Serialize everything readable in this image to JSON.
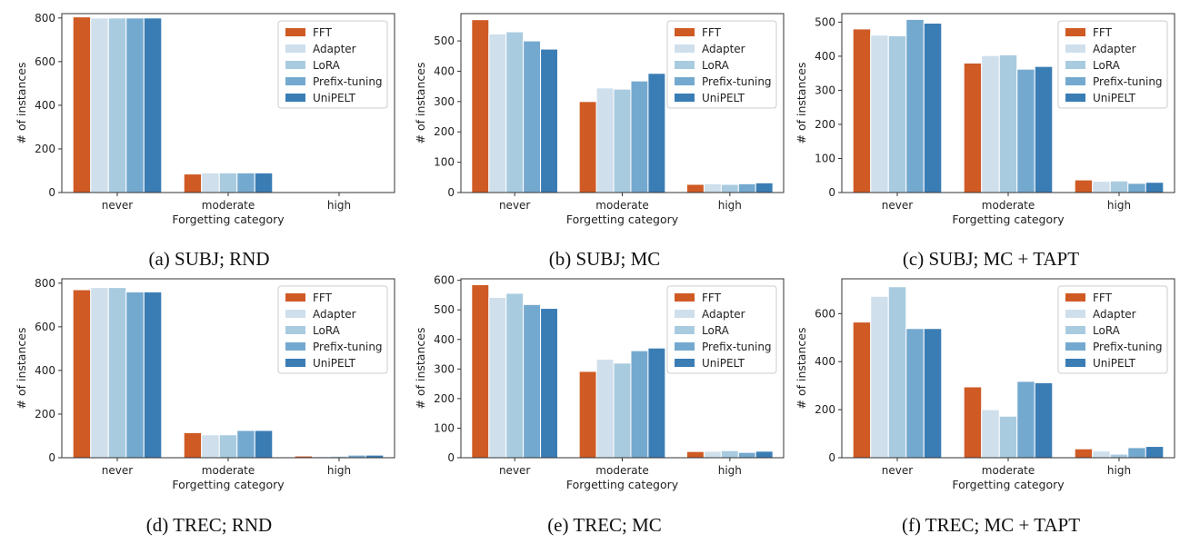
{
  "legend_entries": [
    "FFT",
    "Adapter",
    "LoRA",
    "Prefix-tuning",
    "UniPELT"
  ],
  "series_colors": [
    "#cf5a24",
    "#cfdfec",
    "#a9cbe0",
    "#74a9cf",
    "#3a7db5"
  ],
  "chart_data": [
    {
      "type": "bar",
      "caption": "(a) SUBJ; RND",
      "title": "",
      "xlabel": "Forgetting category",
      "ylabel": "# of instances",
      "categories": [
        "never",
        "moderate",
        "high"
      ],
      "ylim": [
        0,
        820
      ],
      "yticks": [
        0,
        200,
        400,
        600,
        800
      ],
      "legend": "top-right",
      "series": [
        {
          "name": "FFT",
          "values": [
            805,
            85,
            2
          ]
        },
        {
          "name": "Adapter",
          "values": [
            800,
            90,
            1
          ]
        },
        {
          "name": "LoRA",
          "values": [
            800,
            90,
            1
          ]
        },
        {
          "name": "Prefix-tuning",
          "values": [
            800,
            90,
            1
          ]
        },
        {
          "name": "UniPELT",
          "values": [
            800,
            90,
            1
          ]
        }
      ]
    },
    {
      "type": "bar",
      "caption": "(b) SUBJ; MC",
      "title": "",
      "xlabel": "Forgetting category",
      "ylabel": "# of instances",
      "categories": [
        "never",
        "moderate",
        "high"
      ],
      "ylim": [
        0,
        590
      ],
      "yticks": [
        0,
        100,
        200,
        300,
        400,
        500
      ],
      "legend": "top-right",
      "series": [
        {
          "name": "FFT",
          "values": [
            570,
            300,
            27
          ]
        },
        {
          "name": "Adapter",
          "values": [
            523,
            345,
            29
          ]
        },
        {
          "name": "LoRA",
          "values": [
            530,
            341,
            27
          ]
        },
        {
          "name": "Prefix-tuning",
          "values": [
            500,
            368,
            29
          ]
        },
        {
          "name": "UniPELT",
          "values": [
            473,
            393,
            32
          ]
        }
      ]
    },
    {
      "type": "bar",
      "caption": "(c) SUBJ; MC + TAPT",
      "title": "",
      "xlabel": "Forgetting category",
      "ylabel": "# of instances",
      "categories": [
        "never",
        "moderate",
        "high"
      ],
      "ylim": [
        0,
        525
      ],
      "yticks": [
        0,
        100,
        200,
        300,
        400,
        500
      ],
      "legend": "top-right",
      "series": [
        {
          "name": "FFT",
          "values": [
            480,
            380,
            37
          ]
        },
        {
          "name": "Adapter",
          "values": [
            462,
            402,
            33
          ]
        },
        {
          "name": "LoRA",
          "values": [
            460,
            404,
            34
          ]
        },
        {
          "name": "Prefix-tuning",
          "values": [
            508,
            362,
            27
          ]
        },
        {
          "name": "UniPELT",
          "values": [
            497,
            370,
            30
          ]
        }
      ]
    },
    {
      "type": "bar",
      "caption": "(d) TREC; RND",
      "title": "",
      "xlabel": "Forgetting category",
      "ylabel": "# of instances",
      "categories": [
        "never",
        "moderate",
        "high"
      ],
      "ylim": [
        0,
        820
      ],
      "yticks": [
        0,
        200,
        400,
        600,
        800
      ],
      "legend": "top-right",
      "series": [
        {
          "name": "FFT",
          "values": [
            770,
            115,
            8
          ]
        },
        {
          "name": "Adapter",
          "values": [
            780,
            105,
            6
          ]
        },
        {
          "name": "LoRA",
          "values": [
            780,
            105,
            7
          ]
        },
        {
          "name": "Prefix-tuning",
          "values": [
            760,
            125,
            12
          ]
        },
        {
          "name": "UniPELT",
          "values": [
            760,
            125,
            12
          ]
        }
      ]
    },
    {
      "type": "bar",
      "caption": "(e) TREC; MC",
      "title": "",
      "xlabel": "Forgetting category",
      "ylabel": "# of instances",
      "categories": [
        "never",
        "moderate",
        "high"
      ],
      "ylim": [
        0,
        605
      ],
      "yticks": [
        0,
        100,
        200,
        300,
        400,
        500,
        600
      ],
      "legend": "top-right",
      "series": [
        {
          "name": "FFT",
          "values": [
            585,
            292,
            21
          ]
        },
        {
          "name": "Adapter",
          "values": [
            542,
            333,
            22
          ]
        },
        {
          "name": "LoRA",
          "values": [
            556,
            320,
            24
          ]
        },
        {
          "name": "Prefix-tuning",
          "values": [
            518,
            362,
            18
          ]
        },
        {
          "name": "UniPELT",
          "values": [
            505,
            371,
            22
          ]
        }
      ]
    },
    {
      "type": "bar",
      "caption": "(f) TREC; MC + TAPT",
      "title": "",
      "xlabel": "Forgetting category",
      "ylabel": "# of instances",
      "categories": [
        "never",
        "moderate",
        "high"
      ],
      "ylim": [
        0,
        745
      ],
      "yticks": [
        0,
        200,
        400,
        600
      ],
      "legend": "top-right",
      "series": [
        {
          "name": "FFT",
          "values": [
            565,
            295,
            37
          ]
        },
        {
          "name": "Adapter",
          "values": [
            672,
            200,
            28
          ]
        },
        {
          "name": "LoRA",
          "values": [
            712,
            173,
            15
          ]
        },
        {
          "name": "Prefix-tuning",
          "values": [
            538,
            318,
            42
          ]
        },
        {
          "name": "UniPELT",
          "values": [
            538,
            312,
            47
          ]
        }
      ]
    }
  ]
}
